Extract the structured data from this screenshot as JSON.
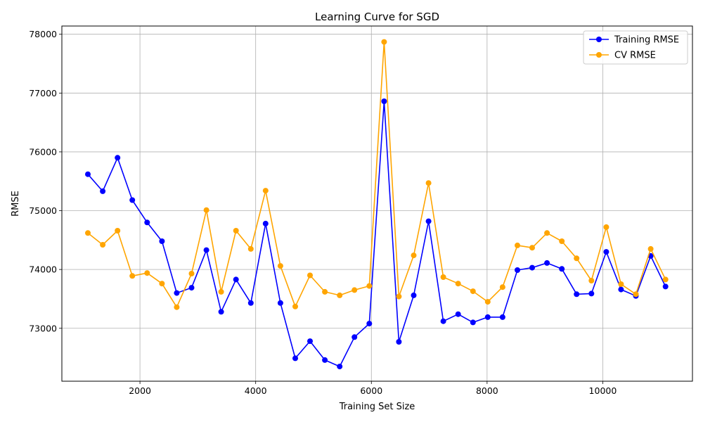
{
  "chart_data": {
    "type": "line",
    "title": "Learning Curve for SGD",
    "xlabel": "Training Set Size",
    "ylabel": "RMSE",
    "xlim": [
      650,
      11550
    ],
    "ylim": [
      72100,
      78140
    ],
    "xticks": [
      2000,
      4000,
      6000,
      8000,
      10000
    ],
    "yticks": [
      73000,
      74000,
      75000,
      76000,
      77000,
      78000
    ],
    "grid": true,
    "legend_position": "top-right",
    "x": [
      1100,
      1356,
      1612,
      1868,
      2124,
      2380,
      2636,
      2892,
      3148,
      3404,
      3660,
      3916,
      4172,
      4428,
      4684,
      4940,
      5196,
      5452,
      5708,
      5964,
      6220,
      6476,
      6732,
      6988,
      7244,
      7500,
      7756,
      8012,
      8268,
      8524,
      8780,
      9036,
      9292,
      9548,
      9804,
      10060,
      10316,
      10572,
      10828,
      11084
    ],
    "series": [
      {
        "name": "Training RMSE",
        "color": "#0000ff",
        "values": [
          75620,
          75330,
          75900,
          75180,
          74800,
          74480,
          73600,
          73690,
          74330,
          73280,
          73830,
          73430,
          74780,
          73430,
          72490,
          72780,
          72460,
          72350,
          72850,
          73080,
          76860,
          72770,
          73560,
          74820,
          73120,
          73240,
          73100,
          73190,
          73190,
          73990,
          74030,
          74110,
          74010,
          73580,
          73590,
          74300,
          73660,
          73550,
          74230,
          73710
        ]
      },
      {
        "name": "CV RMSE",
        "color": "#ffa500",
        "values": [
          74620,
          74420,
          74660,
          73890,
          73940,
          73760,
          73360,
          73930,
          75010,
          73620,
          74660,
          74350,
          75340,
          74060,
          73370,
          73900,
          73620,
          73560,
          73650,
          73720,
          77870,
          73540,
          74240,
          75470,
          73870,
          73760,
          73630,
          73450,
          73700,
          74410,
          74370,
          74620,
          74480,
          74190,
          73810,
          74720,
          73750,
          73580,
          74350,
          73830
        ]
      }
    ]
  }
}
